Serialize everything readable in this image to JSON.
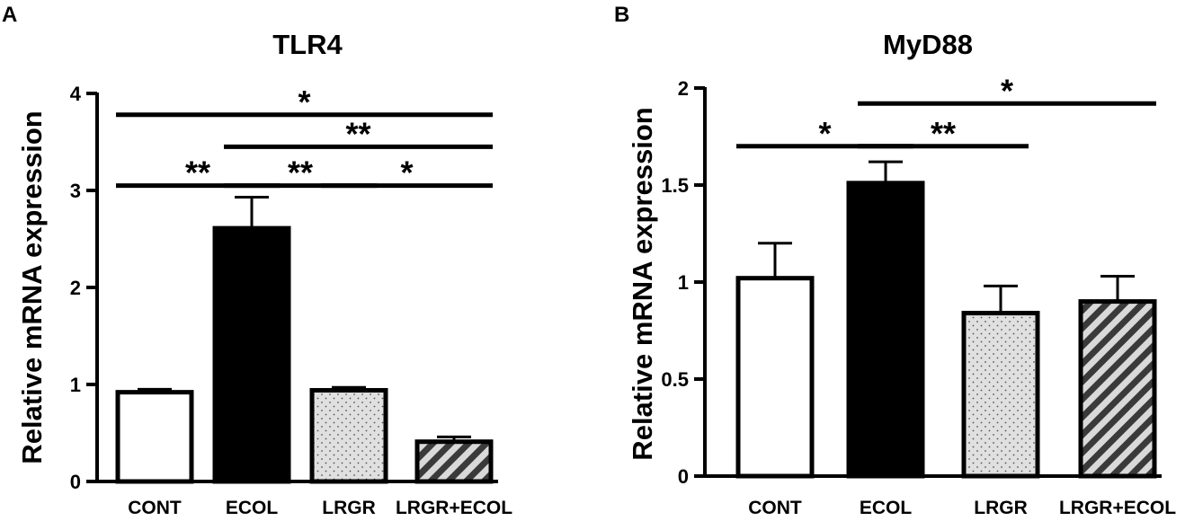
{
  "chart_data": [
    {
      "panel": "A",
      "type": "bar",
      "title": "TLR4",
      "ylabel": "Relative mRNA expression",
      "xlabel": "",
      "categories": [
        "CONT",
        "ECOL",
        "LRGR",
        "LRGR+ECOL"
      ],
      "values": [
        0.92,
        2.61,
        0.94,
        0.41
      ],
      "errors": [
        0.03,
        0.32,
        0.03,
        0.05
      ],
      "fills": [
        "white",
        "black",
        "dots",
        "stripes"
      ],
      "ylim": [
        0,
        4
      ],
      "yticks": [
        "0",
        "1",
        "2",
        "3",
        "4"
      ],
      "yticks_values": [
        0,
        1,
        2,
        3,
        4
      ],
      "significance": [
        {
          "from": 0,
          "to": 3,
          "label": "*",
          "level": 3.78
        },
        {
          "from": 1,
          "to": 3,
          "label": "**",
          "level": 3.45
        },
        {
          "from": 0,
          "to": 1,
          "label": "**",
          "level": 3.05
        },
        {
          "from": 1,
          "to": 2,
          "label": "**",
          "level": 3.05
        },
        {
          "from": 2,
          "to": 3,
          "label": "*",
          "level": 3.05
        }
      ],
      "grid": false
    },
    {
      "panel": "B",
      "type": "bar",
      "title": "MyD88",
      "ylabel": "Relative mRNA expression",
      "xlabel": "",
      "categories": [
        "CONT",
        "ECOL",
        "LRGR",
        "LRGR+ECOL"
      ],
      "values": [
        1.02,
        1.51,
        0.84,
        0.9
      ],
      "errors": [
        0.18,
        0.11,
        0.14,
        0.13
      ],
      "fills": [
        "white",
        "black",
        "dots",
        "stripes"
      ],
      "ylim": [
        0,
        2
      ],
      "yticks": [
        "0",
        "0.5",
        "1",
        "1.5",
        "2"
      ],
      "yticks_values": [
        0,
        0.5,
        1,
        1.5,
        2
      ],
      "significance": [
        {
          "from": 0,
          "to": 1,
          "label": "*",
          "level": 1.7
        },
        {
          "from": 1,
          "to": 2,
          "label": "**",
          "level": 1.7
        },
        {
          "from": 1,
          "to": 3,
          "label": "*",
          "level": 1.92
        }
      ],
      "grid": false
    }
  ]
}
